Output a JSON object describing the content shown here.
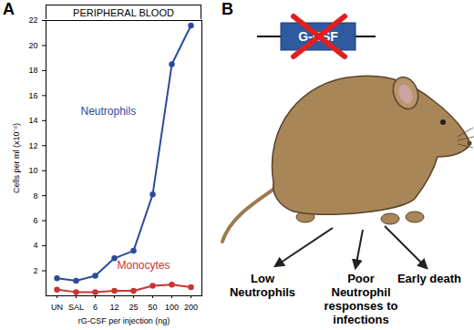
{
  "chart_data": {
    "type": "line",
    "panel_label": "A",
    "title": "PERIPHERAL BLOOD",
    "x_label": "rG-CSF per injection (ng)",
    "y_label": "Cells per ml (x10⁻⁶)",
    "categories": [
      "UN",
      "SAL",
      "6",
      "12",
      "25",
      "50",
      "100",
      "200"
    ],
    "series": [
      {
        "name": "Neutrophils",
        "color": "#2b4c9b",
        "marker": "circle",
        "line_style": "solid",
        "values": [
          1.4,
          1.2,
          1.6,
          3.0,
          3.6,
          8.1,
          18.5,
          21.6
        ]
      },
      {
        "name": "Monocytes",
        "color": "#cc3333",
        "marker": "circle",
        "line_style": "solid",
        "values": [
          0.5,
          0.3,
          0.3,
          0.4,
          0.4,
          0.8,
          0.9,
          0.7
        ]
      }
    ],
    "ylim": [
      0,
      22
    ],
    "yticks": [
      2,
      4,
      6,
      8,
      10,
      12,
      14,
      16,
      18,
      20,
      22
    ],
    "grid": false
  },
  "diagram": {
    "panel_label": "B",
    "gene": "G-CSF",
    "outcomes": [
      "Low Neutrophils",
      "Poor Neutrophil responses to infections",
      "Early death"
    ]
  }
}
